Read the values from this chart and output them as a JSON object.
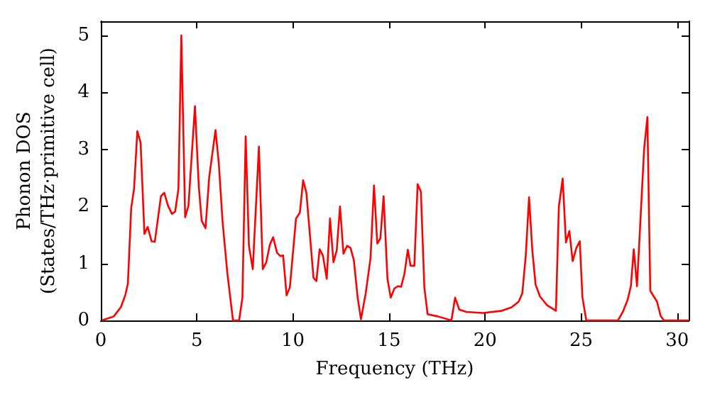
{
  "chart_data": {
    "type": "line",
    "xlabel": "Frequency (THz)",
    "ylabel": "Phonon DOS\n(States/THz·primitive cell)",
    "xlim": [
      0,
      30.6
    ],
    "xticks": [
      0,
      5,
      10,
      15,
      20,
      25,
      30
    ],
    "ylim": [
      0,
      5.25
    ],
    "yticks": [
      0,
      1,
      2,
      3,
      4,
      5
    ],
    "grid": false,
    "marker": "none",
    "line_style": "solid",
    "series": [
      {
        "color": "#ff0000",
        "x": [
          0.05,
          0.67,
          1.04,
          1.28,
          1.41,
          1.58,
          1.73,
          1.9,
          2.07,
          2.27,
          2.44,
          2.64,
          2.81,
          3.13,
          3.3,
          3.5,
          3.7,
          3.87,
          4.04,
          4.19,
          4.39,
          4.56,
          4.9,
          5.1,
          5.25,
          5.45,
          5.64,
          5.97,
          6.14,
          6.34,
          6.58,
          6.88,
          7.2,
          7.37,
          7.54,
          7.71,
          7.91,
          8.23,
          8.43,
          8.61,
          8.8,
          8.97,
          9.17,
          9.34,
          9.49,
          9.67,
          9.84,
          10.16,
          10.36,
          10.53,
          10.7,
          11.07,
          11.22,
          11.39,
          11.56,
          11.76,
          11.93,
          12.11,
          12.28,
          12.45,
          12.63,
          12.82,
          13.0,
          13.17,
          13.37,
          13.54,
          13.79,
          14.04,
          14.22,
          14.39,
          14.55,
          14.72,
          14.92,
          15.09,
          15.28,
          15.46,
          15.63,
          15.8,
          15.98,
          16.12,
          16.32,
          16.49,
          16.66,
          16.84,
          17.01,
          17.55,
          18.25,
          18.44,
          18.66,
          19.03,
          19.9,
          20.88,
          21.38,
          21.75,
          21.94,
          22.12,
          22.29,
          22.46,
          22.63,
          22.86,
          23.22,
          23.69,
          23.84,
          24.04,
          24.21,
          24.39,
          24.56,
          24.75,
          24.93,
          25.07,
          25.27,
          26.92,
          27.17,
          27.42,
          27.59,
          27.74,
          27.91,
          28.28,
          28.45,
          28.6,
          28.95,
          29.14,
          29.31,
          30.6
        ],
        "values": [
          0,
          0.07,
          0.23,
          0.45,
          0.65,
          1.97,
          2.31,
          3.32,
          3.12,
          1.52,
          1.64,
          1.39,
          1.38,
          2.18,
          2.24,
          2.01,
          1.87,
          1.91,
          2.31,
          5.0,
          1.81,
          2.01,
          3.76,
          2.35,
          1.75,
          1.62,
          2.51,
          3.34,
          2.76,
          1.72,
          0.85,
          0,
          0,
          0.4,
          3.23,
          1.31,
          0.9,
          3.05,
          0.9,
          1.02,
          1.33,
          1.46,
          1.19,
          1.13,
          1.14,
          0.44,
          0.58,
          1.79,
          1.89,
          2.46,
          2.24,
          0.75,
          0.69,
          1.25,
          1.14,
          0.73,
          1.79,
          1.02,
          1.23,
          2.0,
          1.17,
          1.31,
          1.27,
          1.06,
          0.4,
          0.02,
          0.48,
          1.1,
          2.37,
          1.35,
          1.44,
          2.18,
          0.73,
          0.4,
          0.56,
          0.6,
          0.59,
          0.81,
          1.24,
          0.96,
          0.96,
          2.39,
          2.26,
          0.58,
          0.11,
          0.07,
          0,
          0.4,
          0.19,
          0.15,
          0.13,
          0.17,
          0.23,
          0.33,
          0.48,
          1.14,
          2.16,
          1.23,
          0.63,
          0.42,
          0.27,
          0.17,
          1.99,
          2.49,
          1.37,
          1.57,
          1.04,
          1.27,
          1.39,
          0.4,
          0,
          0,
          0.15,
          0.36,
          0.6,
          1.25,
          0.6,
          3.01,
          3.57,
          0.52,
          0.33,
          0.08,
          0,
          0
        ]
      }
    ]
  }
}
